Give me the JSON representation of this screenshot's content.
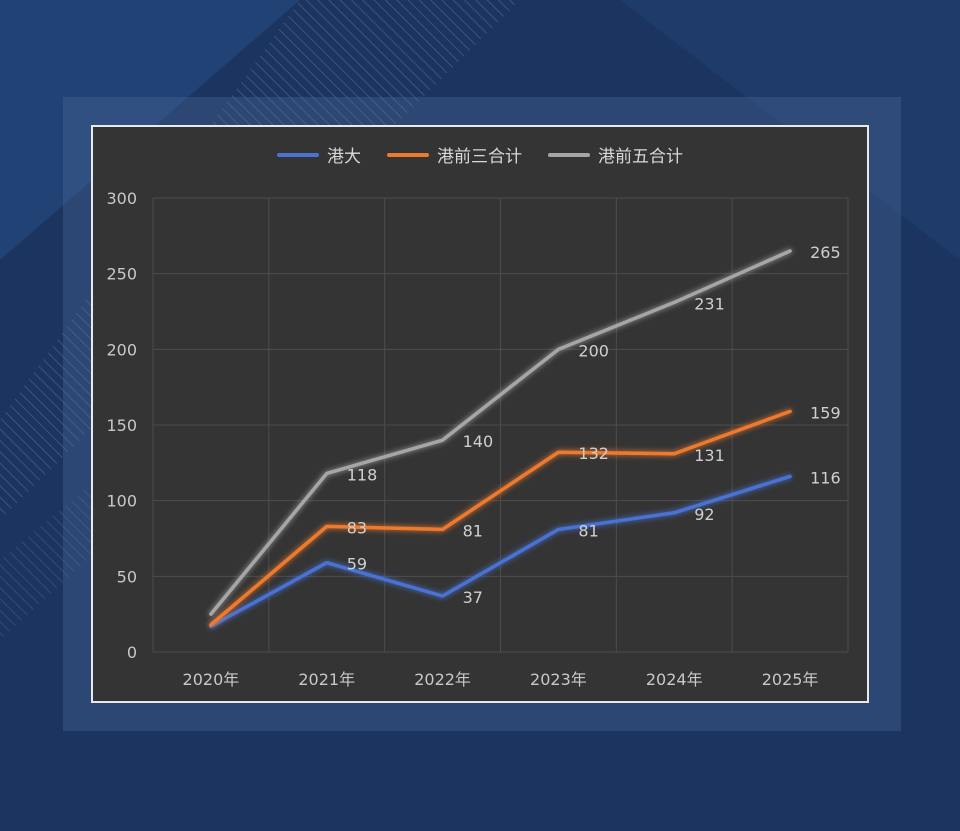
{
  "colors": {
    "background": "#1b3560",
    "plot_background": "#343434",
    "grid": "#4d4d4d",
    "axis_text": "#c8c8c8",
    "label_text": "#cfcfcf"
  },
  "chart_data": {
    "type": "line",
    "title": "",
    "xlabel": "",
    "ylabel": "",
    "categories": [
      "2020年",
      "2021年",
      "2022年",
      "2023年",
      "2024年",
      "2025年"
    ],
    "ylim": [
      0,
      300
    ],
    "yticks": [
      0,
      50,
      100,
      150,
      200,
      250,
      300
    ],
    "grid": true,
    "legend_position": "top-center",
    "series": [
      {
        "name": "港大",
        "color": "#4a72d4",
        "values": [
          17,
          59,
          37,
          81,
          92,
          116
        ],
        "labels": [
          "",
          "59",
          "37",
          "81",
          "92",
          "116"
        ]
      },
      {
        "name": "港前三合计",
        "color": "#ee7a2e",
        "values": [
          18,
          83,
          81,
          132,
          131,
          159
        ],
        "labels": [
          "",
          "83",
          "81",
          "132",
          "131",
          "159"
        ]
      },
      {
        "name": "港前五合计",
        "color": "#a6a6a6",
        "values": [
          25,
          118,
          140,
          200,
          231,
          265
        ],
        "labels": [
          "",
          "118",
          "140",
          "200",
          "231",
          "265"
        ]
      }
    ]
  }
}
